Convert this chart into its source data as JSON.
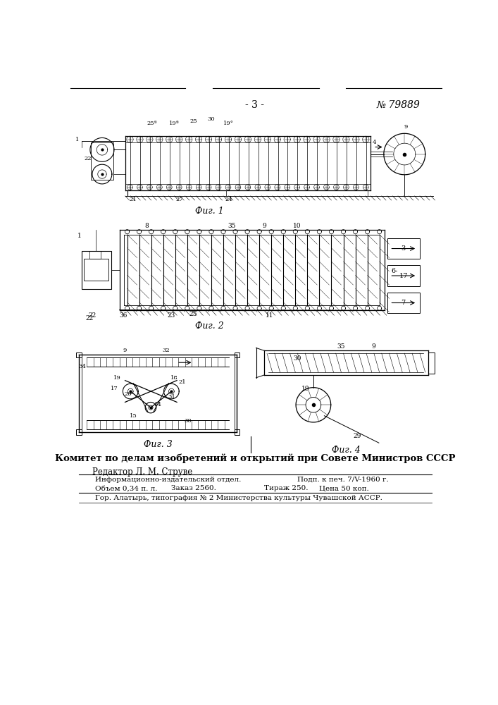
{
  "page_num": "- 3 -",
  "patent_num": "№ 79889",
  "fig1_caption": "Фиг. 1",
  "fig2_caption": "Фиг. 2",
  "fig3_caption": "Фиг. 3",
  "fig4_caption": "Фиг. 4",
  "committee_text": "Комитет по делам изобретений и открытий при Совете Министров СССР",
  "editor_text": "Редактор Л. М. Струве",
  "info_line1l": "Информационно-издательский отдел.",
  "info_line1r": "Подп. к печ. 7/V-1960 г.",
  "info_line2l": "Объем 0,34 п. л.",
  "info_line2m": "Заказ 2560.",
  "info_line2r": "Тираж 250.",
  "info_line2rr": "Цена 50 коп.",
  "info_line3": "Гор. Алатырь, типография № 2 Министерства культуры Чувашской АССР.",
  "bg_color": "#ffffff",
  "line_color": "#000000",
  "text_color": "#000000"
}
